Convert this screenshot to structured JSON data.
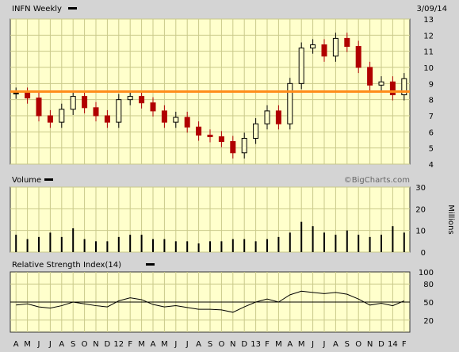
{
  "header": {
    "title": "INFN Weekly",
    "date": "3/09/14"
  },
  "volume_panel": {
    "title": "Volume",
    "unit": "Millions",
    "credit": "©BigCharts.com"
  },
  "rsi_panel": {
    "title": "Relative Strength Index(14)"
  },
  "months": [
    "A",
    "M",
    "J",
    "J",
    "A",
    "S",
    "O",
    "N",
    "D",
    "12",
    "F",
    "M",
    "A",
    "M",
    "J",
    "J",
    "A",
    "S",
    "O",
    "N",
    "D",
    "13",
    "F",
    "M",
    "A",
    "M",
    "J",
    "J",
    "A",
    "S",
    "O",
    "N",
    "D",
    "14",
    "F"
  ],
  "colors": {
    "panel_bg": "#ffffcc",
    "grid": "#c9c98a",
    "up_candle": "#000000",
    "down_candle": "#b00000",
    "resistance": "#ff8c1a",
    "page_bg": "#d4d4d4"
  },
  "chart_data": [
    {
      "type": "candlestick",
      "title": "INFN Weekly",
      "ylim": [
        4,
        13
      ],
      "yticks": [
        4,
        5,
        6,
        7,
        8,
        9,
        10,
        11,
        12,
        13
      ],
      "x": [
        "A",
        "M",
        "J",
        "J",
        "A",
        "S",
        "O",
        "N",
        "D",
        "12",
        "F",
        "M",
        "A",
        "M",
        "J",
        "J",
        "A",
        "S",
        "O",
        "N",
        "D",
        "13",
        "F",
        "M",
        "A",
        "M",
        "J",
        "J",
        "A",
        "S",
        "O",
        "N",
        "D",
        "14",
        "F"
      ],
      "close": [
        8.4,
        8.1,
        7.0,
        6.6,
        7.4,
        8.2,
        7.5,
        7.0,
        6.6,
        8.0,
        8.2,
        7.8,
        7.3,
        6.6,
        6.9,
        6.3,
        5.8,
        5.7,
        5.4,
        4.7,
        5.6,
        6.5,
        7.3,
        6.5,
        9.0,
        11.2,
        11.4,
        10.7,
        11.8,
        11.3,
        10.0,
        8.9,
        9.1,
        8.3,
        9.3
      ],
      "resistance_level": 8.5
    },
    {
      "type": "bar",
      "title": "Volume",
      "ylabel": "Millions",
      "ylim": [
        0,
        30
      ],
      "yticks": [
        0,
        10,
        20,
        30
      ],
      "x": [
        "A",
        "M",
        "J",
        "J",
        "A",
        "S",
        "O",
        "N",
        "D",
        "12",
        "F",
        "M",
        "A",
        "M",
        "J",
        "J",
        "A",
        "S",
        "O",
        "N",
        "D",
        "13",
        "F",
        "M",
        "A",
        "M",
        "J",
        "J",
        "A",
        "S",
        "O",
        "N",
        "D",
        "14",
        "F"
      ],
      "values": [
        8,
        6,
        7,
        9,
        7,
        11,
        6,
        5,
        5,
        7,
        8,
        8,
        6,
        6,
        5,
        5,
        4,
        5,
        5,
        6,
        6,
        5,
        6,
        7,
        9,
        14,
        12,
        9,
        8,
        10,
        8,
        7,
        8,
        12,
        9
      ]
    },
    {
      "type": "line",
      "title": "Relative Strength Index(14)",
      "ylim": [
        0,
        100
      ],
      "yticks": [
        20,
        50,
        80,
        100
      ],
      "reference_level": 50,
      "x": [
        "A",
        "M",
        "J",
        "J",
        "A",
        "S",
        "O",
        "N",
        "D",
        "12",
        "F",
        "M",
        "A",
        "M",
        "J",
        "J",
        "A",
        "S",
        "O",
        "N",
        "D",
        "13",
        "F",
        "M",
        "A",
        "M",
        "J",
        "J",
        "A",
        "S",
        "O",
        "N",
        "D",
        "14",
        "F"
      ],
      "values": [
        45,
        47,
        42,
        40,
        44,
        50,
        47,
        44,
        42,
        52,
        57,
        54,
        46,
        42,
        44,
        41,
        38,
        38,
        37,
        33,
        42,
        50,
        55,
        50,
        62,
        68,
        66,
        64,
        66,
        63,
        55,
        45,
        48,
        44,
        52
      ]
    }
  ]
}
